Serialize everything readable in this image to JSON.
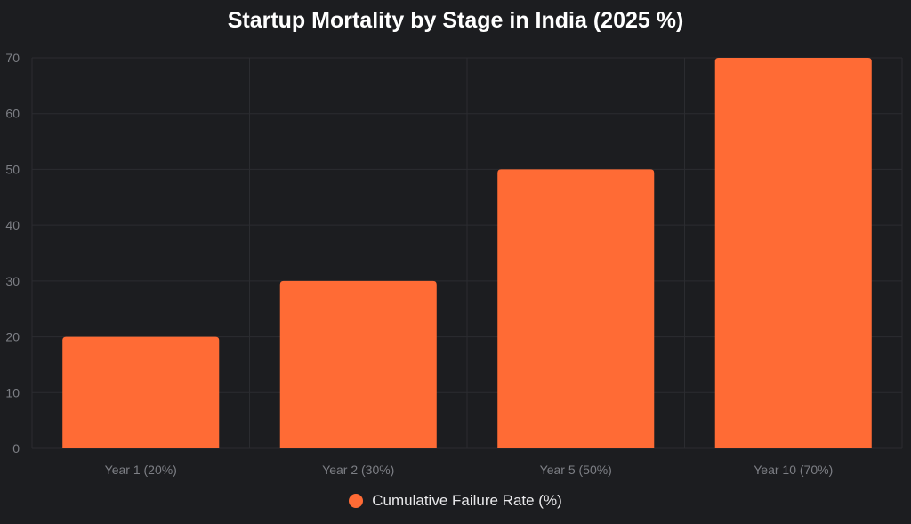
{
  "chart_data": {
    "type": "bar",
    "title": "Startup Mortality by Stage in India (2025 %)",
    "categories": [
      "Year 1 (20%)",
      "Year 2 (30%)",
      "Year 5 (50%)",
      "Year 10 (70%)"
    ],
    "series": [
      {
        "name": "Cumulative Failure Rate (%)",
        "values": [
          20,
          30,
          50,
          70
        ],
        "color": "#ff6b35"
      }
    ],
    "ylim": [
      0,
      70
    ],
    "yticks": [
      "0",
      "10",
      "20",
      "30",
      "40",
      "50",
      "60",
      "70"
    ],
    "xlabel": "",
    "ylabel": "",
    "grid": true,
    "legend_position": "bottom"
  },
  "colors": {
    "background": "#1c1d20",
    "grid": "#2b2c30",
    "bar": "#ff6b35"
  }
}
